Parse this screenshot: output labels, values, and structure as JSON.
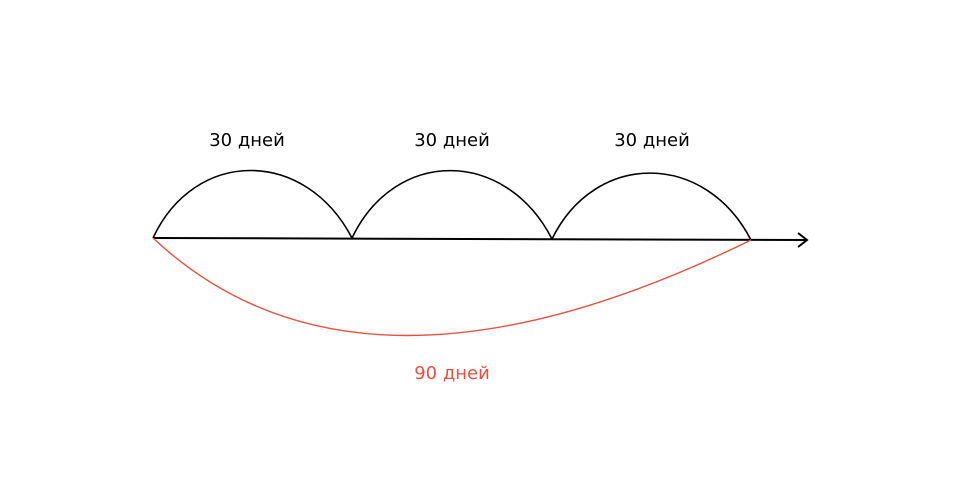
{
  "segments": [
    {
      "label": "30 дней"
    },
    {
      "label": "30 дней"
    },
    {
      "label": "30 дней"
    }
  ],
  "total": {
    "label": "90 дней"
  },
  "colors": {
    "line": "#000000",
    "accent": "#e8513f"
  }
}
